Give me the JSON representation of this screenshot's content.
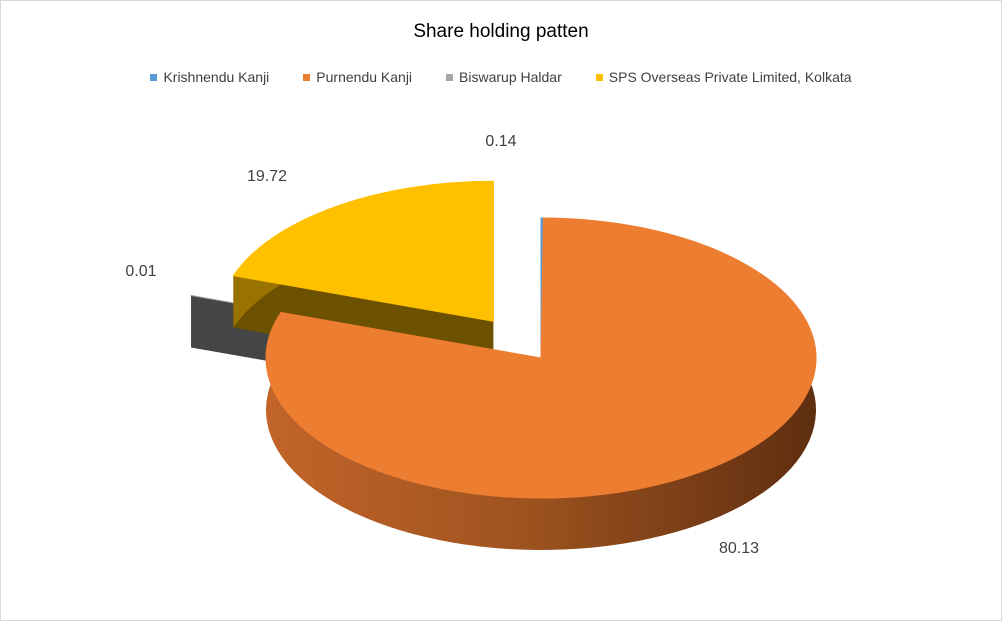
{
  "chart_data": {
    "type": "pie",
    "title": "Share holding patten",
    "categories": [
      "Krishnendu Kanji",
      "Purnendu Kanji",
      "Biswarup Haldar",
      "SPS Overseas Private Limited, Kolkata"
    ],
    "values": [
      0.14,
      80.13,
      0.01,
      19.72
    ],
    "data_labels": [
      "0.14",
      "80.13",
      "0.01",
      "19.72"
    ],
    "colors": [
      "#5b9bd5",
      "#ed7d31",
      "#a5a5a5",
      "#ffc000"
    ],
    "legend_position": "top",
    "style": "3d-exploded"
  }
}
